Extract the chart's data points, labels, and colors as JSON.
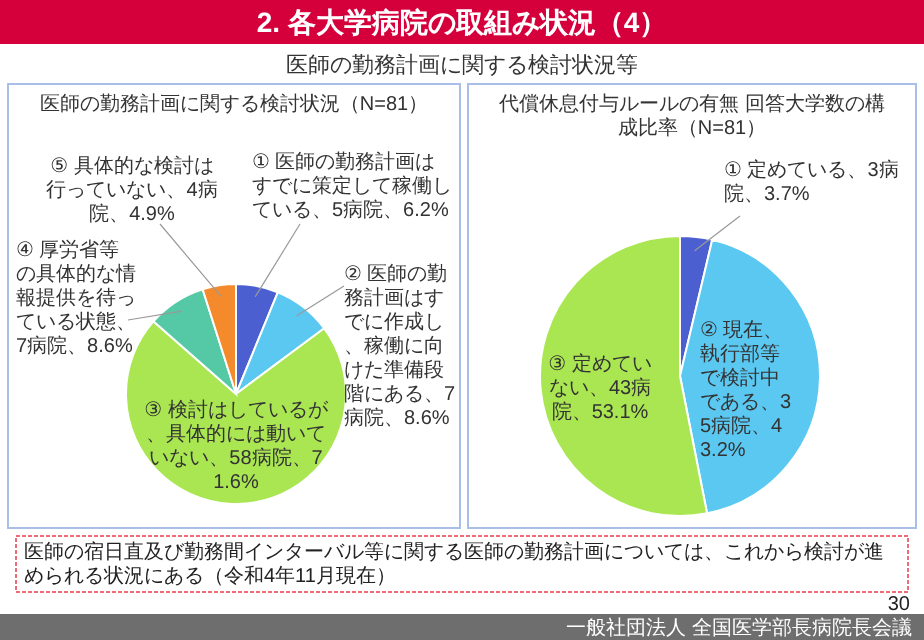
{
  "chart_data": [
    {
      "type": "pie",
      "title": "医師の勤務計画に関する検討状況（N=81）",
      "categories": [
        "① 医師の勤務計画はすでに策定して稼働している、5病院、6.2%",
        "② 医師の勤務計画はすでに作成し、稼働に向けた準備段階にある、7病院、8.6%",
        "③ 検討はしているが、具体的には動いていない、58病院、71.6%",
        "④ 厚労省等の具体的な情報提供を待っている状態、7病院、8.6%",
        "⑤ 具体的な検討は行っていない、4病院、4.9%"
      ],
      "values": [
        6.2,
        8.6,
        71.6,
        8.6,
        4.9
      ],
      "colors": [
        "#4b5fd1",
        "#5bc8f2",
        "#a9e651",
        "#55c9a6",
        "#f58a2c"
      ],
      "annotations": [
        "2. 各大学病院の取組み状況（4）",
        "医師の勤務計画に関する検討状況等"
      ]
    },
    {
      "type": "pie",
      "title": "代償休息付与ルールの有無 回答大学数の構成比率（N=81）",
      "categories": [
        "① 定めている、3病院、3.7%",
        "② 現在、執行部等で検討中である、35病院、43.2%",
        "③ 定めていない、43病院、53.1%"
      ],
      "values": [
        3.7,
        43.2,
        53.1
      ],
      "colors": [
        "#4b5fd1",
        "#5bc8f2",
        "#a9e651"
      ],
      "annotations": [
        "医師の宿日直及び勤務間インターバル等に関する医師の勤務計画については、これから検討が進められる状況にある（令和4年11月現在）",
        "30",
        "一般社団法人 全国医学部長病院長会議"
      ]
    }
  ]
}
